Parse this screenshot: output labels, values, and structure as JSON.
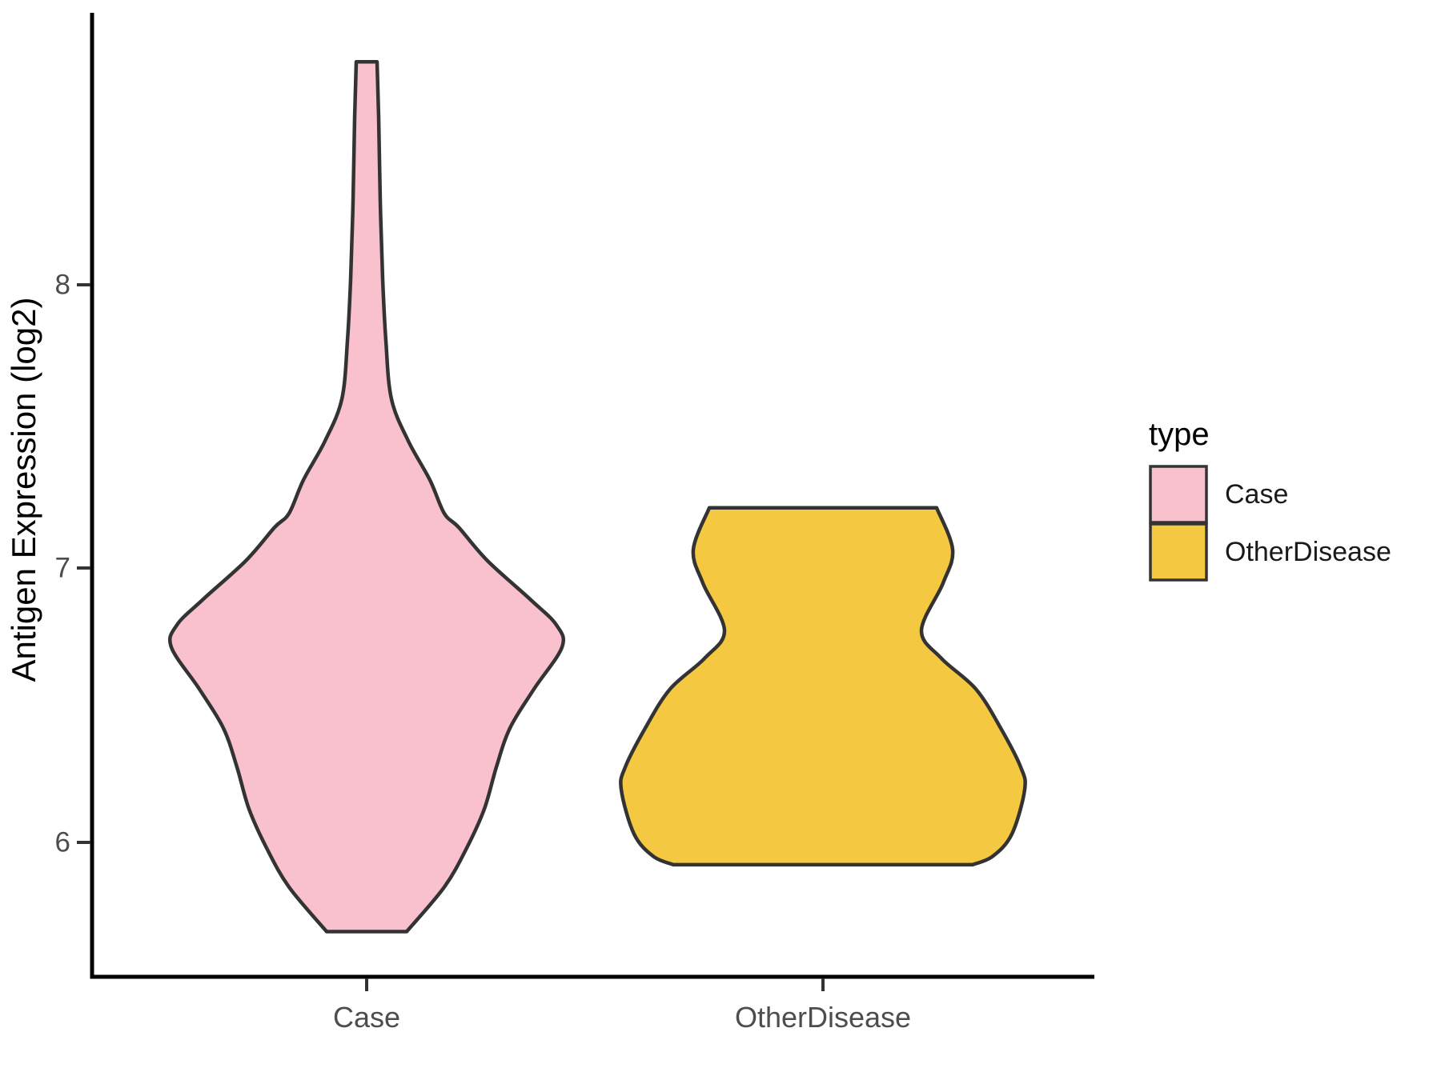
{
  "figure": {
    "background": "#FFFFFF",
    "axis_line_color": "#000000",
    "tick_mark_color": "#333333",
    "tick_text_color": "#4D4D4D"
  },
  "y_axis": {
    "title": "Antigen Expression (log2)",
    "ticks": [
      {
        "label": "8",
        "value": 8
      },
      {
        "label": "7",
        "value": 7
      },
      {
        "label": "6",
        "value": 6
      }
    ]
  },
  "x_axis": {
    "labels": [
      "Case",
      "OtherDisease"
    ]
  },
  "legend": {
    "title": "type",
    "entries": [
      {
        "label": "Case",
        "color": "#F8C1CD"
      },
      {
        "label": "OtherDisease",
        "color": "#F4C840"
      }
    ]
  },
  "chart_data": {
    "type": "violin",
    "title": "",
    "xlabel": "",
    "ylabel": "Antigen Expression (log2)",
    "categories": [
      "Case",
      "OtherDisease"
    ],
    "y_ticks": [
      6,
      7,
      8
    ],
    "ylim_shown": [
      5.52,
      8.98
    ],
    "grid": false,
    "legend_position": "right",
    "series": [
      {
        "name": "Case",
        "fill": "#F8C1CD",
        "outline": "#333333",
        "value_range": [
          5.68,
          8.8
        ],
        "peak_density_value": 6.7,
        "profile_v_halfwidth": [
          [
            8.8,
            13
          ],
          [
            8.6,
            15
          ],
          [
            8.3,
            17
          ],
          [
            8.02,
            20
          ],
          [
            7.8,
            24
          ],
          [
            7.59,
            31
          ],
          [
            7.44,
            52
          ],
          [
            7.3,
            79
          ],
          [
            7.18,
            97
          ],
          [
            7.13,
            115
          ],
          [
            7.01,
            151
          ],
          [
            6.87,
            205
          ],
          [
            6.78,
            237
          ],
          [
            6.7,
            244
          ],
          [
            6.55,
            209
          ],
          [
            6.41,
            179
          ],
          [
            6.27,
            162
          ],
          [
            6.12,
            147
          ],
          [
            5.98,
            125
          ],
          [
            5.84,
            97
          ],
          [
            5.68,
            50
          ]
        ]
      },
      {
        "name": "OtherDisease",
        "fill": "#F4C840",
        "outline": "#333333",
        "value_range": [
          5.92,
          7.2
        ],
        "peak_density_value": 6.19,
        "profile_v_halfwidth": [
          [
            7.2,
            142
          ],
          [
            7.05,
            162
          ],
          [
            6.93,
            150
          ],
          [
            6.76,
            123
          ],
          [
            6.66,
            148
          ],
          [
            6.55,
            191
          ],
          [
            6.41,
            222
          ],
          [
            6.27,
            247
          ],
          [
            6.19,
            252
          ],
          [
            6.03,
            236
          ],
          [
            5.95,
            212
          ],
          [
            5.92,
            187
          ]
        ]
      }
    ]
  }
}
